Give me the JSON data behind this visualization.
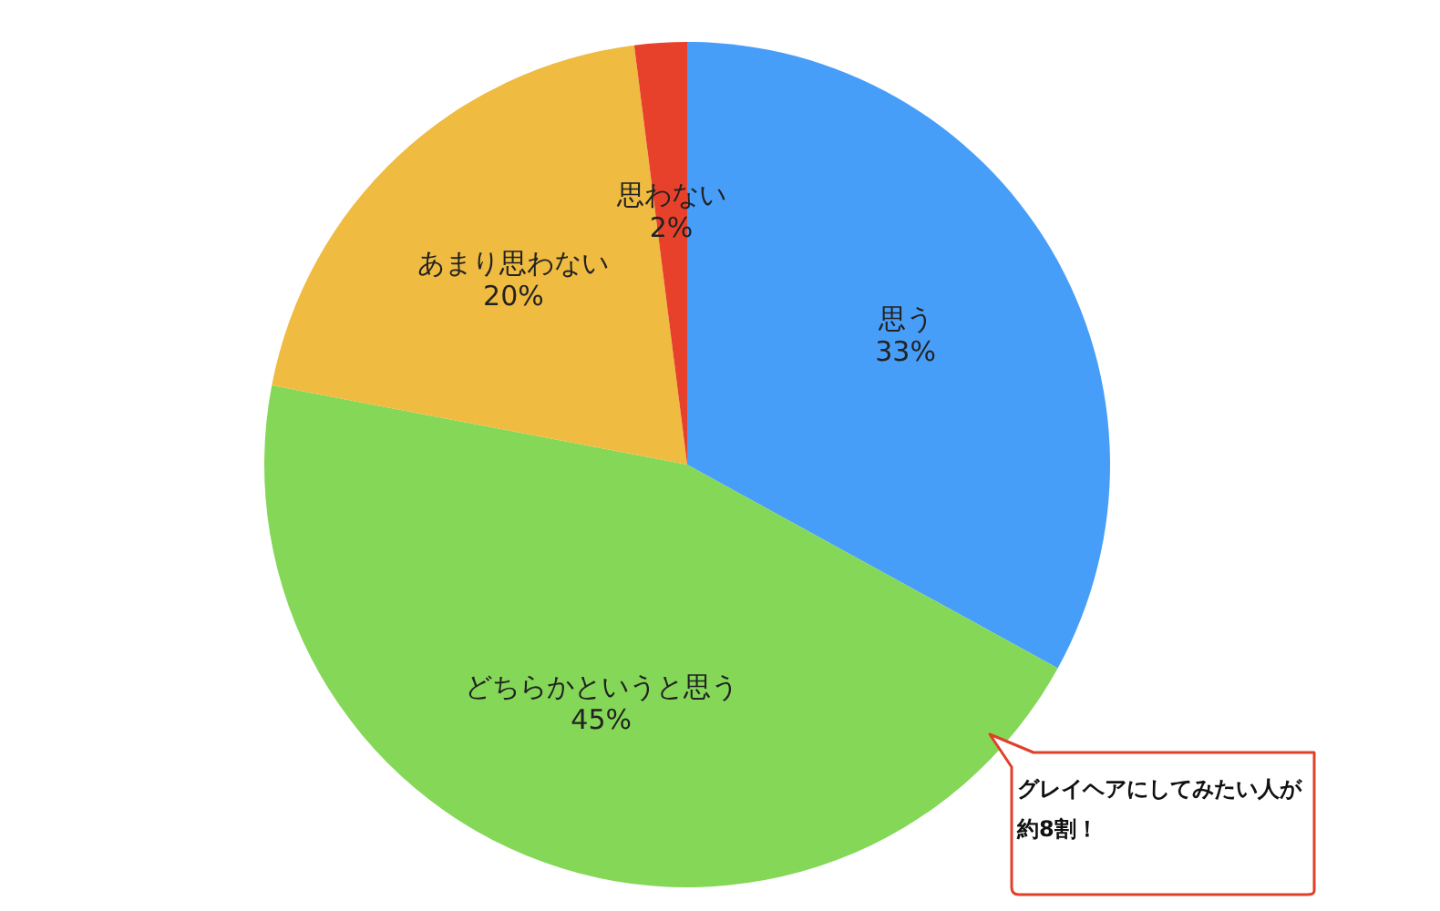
{
  "chart_data": {
    "type": "pie",
    "categories": [
      "思う",
      "どちらかというと思う",
      "あまり思わない",
      "思わない"
    ],
    "values": [
      33,
      45,
      20,
      2
    ],
    "colors": [
      "#479ef8",
      "#84d757",
      "#efbb40",
      "#e8412b"
    ],
    "value_labels": [
      "33%",
      "45%",
      "20%",
      "2%"
    ],
    "annotations": [
      "グレイヘアにしてみたい人が約8割！"
    ]
  }
}
